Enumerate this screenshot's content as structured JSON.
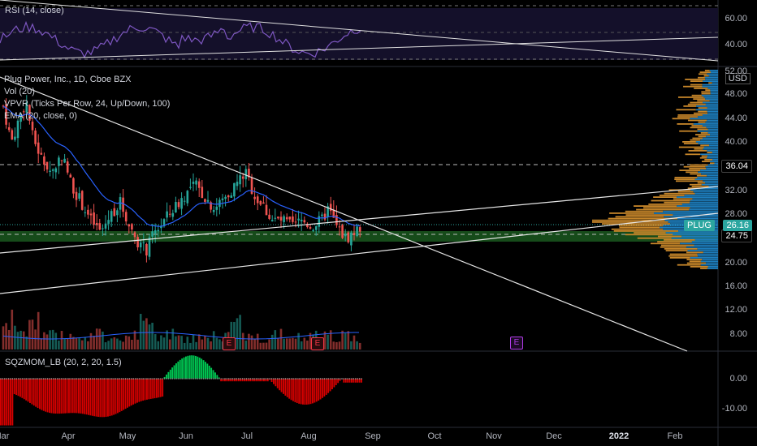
{
  "rsi_pane": {
    "label": "RSI (14, close)",
    "ticks": [
      "60.00",
      "40.00"
    ]
  },
  "main_pane": {
    "legend": [
      "Plug Power, Inc., 1D, Cboe BZX",
      "Vol (20)",
      "VPVR (Ticks Per Row, 24, Up/Down, 100)",
      "EMA (20, close, 0)"
    ],
    "currency": "USD",
    "price_ticks": [
      "52.00",
      "48.00",
      "44.00",
      "40.00",
      "32.00",
      "28.00",
      "20.00",
      "16.00",
      "12.00",
      "8.00"
    ],
    "level_labels": {
      "resistance": "36.04",
      "support": "24.75"
    },
    "current": {
      "symbol": "PLUG",
      "price": "26.16"
    },
    "earnings_markers": [
      "E",
      "E",
      "E"
    ]
  },
  "sqz_pane": {
    "label": "SQZMOM_LB (20, 2, 20, 1.5)",
    "ticks": [
      "0.00",
      "-10.00"
    ]
  },
  "time_axis": [
    "Mar",
    "Apr",
    "May",
    "Jun",
    "Jul",
    "Aug",
    "Sep",
    "Oct",
    "Nov",
    "Dec",
    "2022",
    "Feb"
  ],
  "colors": {
    "background": "#000000",
    "up": "#26a69a",
    "down": "#ef5350",
    "ema": "#2962ff",
    "rsi": "#7e57c2",
    "volume_profile_up": "#1e7fbf",
    "volume_profile_down": "#c8872a",
    "support_zone": "#1b5e20",
    "sqz_up": "#00c853",
    "sqz_down": "#d50000"
  }
}
